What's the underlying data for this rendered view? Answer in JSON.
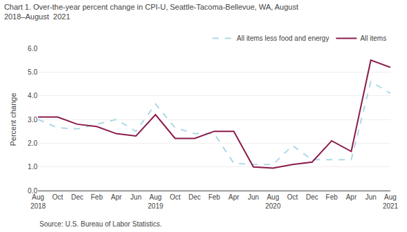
{
  "chart_data": {
    "type": "line",
    "title": "Chart 1. Over-the-year percent change in CPI-U, Seattle-Tacoma-Bellevue, WA, August\n2018–August  2021",
    "y_label": "Percent change",
    "annotations": [
      "Source: U.S. Bureau of Labor Statistics."
    ],
    "categories": [
      "Aug\n2018",
      "Oct",
      "Dec",
      "Feb",
      "Apr",
      "Jun",
      "Aug\n2019",
      "Oct",
      "Dec",
      "Feb",
      "Apr",
      "Jun",
      "Aug\n2020",
      "Oct",
      "Dec",
      "Feb",
      "Apr",
      "Jun",
      "Aug\n2021"
    ],
    "series": [
      {
        "name": "All items less food and energy",
        "color": "#ADD8E6",
        "line_style": "dashed",
        "values": [
          3.0,
          2.65,
          2.6,
          2.8,
          3.0,
          2.5,
          3.65,
          2.65,
          2.4,
          2.4,
          1.15,
          1.1,
          1.1,
          1.9,
          1.3,
          1.3,
          1.3,
          4.6,
          4.1
        ]
      },
      {
        "name": "All items",
        "color": "#8B1A4A",
        "line_style": "solid",
        "values": [
          3.1,
          3.1,
          2.8,
          2.7,
          2.4,
          2.3,
          3.2,
          2.2,
          2.2,
          2.5,
          2.5,
          1.0,
          0.95,
          1.1,
          1.2,
          2.1,
          1.65,
          5.5,
          5.2
        ]
      }
    ],
    "ylim": [
      0.0,
      6.0
    ],
    "yticks": [
      {
        "value": 0,
        "label": "0.0"
      },
      {
        "value": 1,
        "label": "1.0"
      },
      {
        "value": 2,
        "label": "2.0"
      },
      {
        "value": 3,
        "label": "3.0"
      },
      {
        "value": 4,
        "label": "4.0"
      },
      {
        "value": 5,
        "label": "5.0"
      },
      {
        "value": 6,
        "label": "6.0"
      }
    ],
    "grid": true,
    "legend": "upper right"
  }
}
